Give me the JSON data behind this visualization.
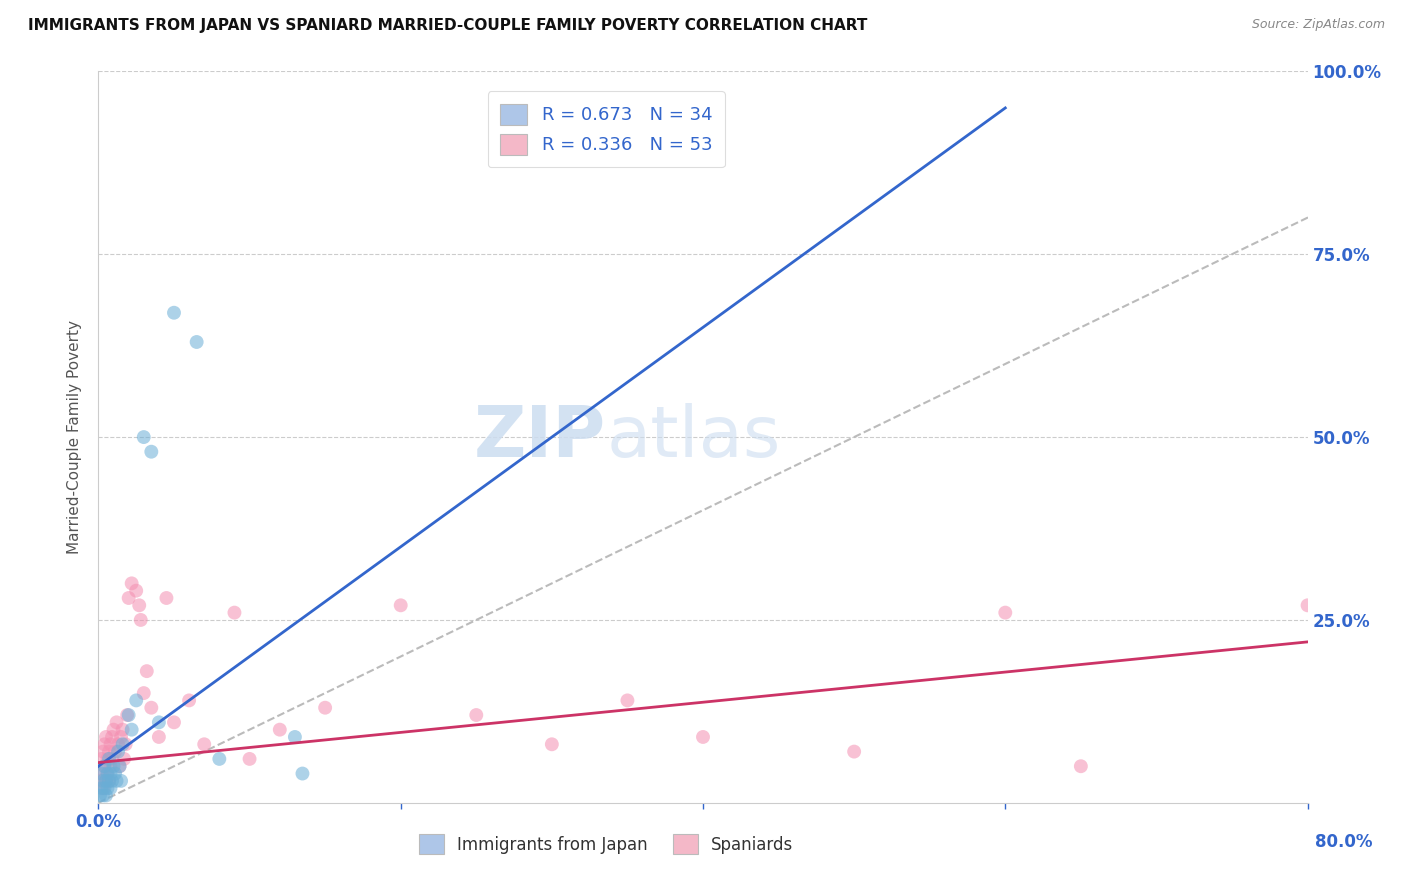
{
  "title": "IMMIGRANTS FROM JAPAN VS SPANIARD MARRIED-COUPLE FAMILY POVERTY CORRELATION CHART",
  "source": "Source: ZipAtlas.com",
  "ylabel": "Married-Couple Family Poverty",
  "xlim": [
    0.0,
    0.8
  ],
  "ylim": [
    0.0,
    1.0
  ],
  "legend1_label": "R = 0.673   N = 34",
  "legend2_label": "R = 0.336   N = 53",
  "legend1_color": "#aec6e8",
  "legend2_color": "#f4b8c8",
  "series1_color": "#6aaed6",
  "series2_color": "#f48fb1",
  "trendline1_color": "#3366cc",
  "trendline2_color": "#cc3366",
  "diagonal_color": "#bbbbbb",
  "watermark_color": "#ddeeff",
  "background_color": "#ffffff",
  "grid_color": "#cccccc",
  "japan_x": [
    0.001,
    0.002,
    0.002,
    0.003,
    0.003,
    0.004,
    0.004,
    0.005,
    0.005,
    0.006,
    0.006,
    0.007,
    0.007,
    0.008,
    0.008,
    0.009,
    0.01,
    0.011,
    0.012,
    0.013,
    0.014,
    0.015,
    0.016,
    0.02,
    0.022,
    0.025,
    0.03,
    0.035,
    0.04,
    0.05,
    0.065,
    0.08,
    0.13,
    0.135
  ],
  "japan_y": [
    0.01,
    0.02,
    0.04,
    0.01,
    0.03,
    0.02,
    0.05,
    0.01,
    0.03,
    0.02,
    0.04,
    0.03,
    0.06,
    0.02,
    0.04,
    0.03,
    0.05,
    0.04,
    0.03,
    0.07,
    0.05,
    0.03,
    0.08,
    0.12,
    0.1,
    0.14,
    0.5,
    0.48,
    0.11,
    0.67,
    0.63,
    0.06,
    0.09,
    0.04
  ],
  "spaniard_x": [
    0.001,
    0.002,
    0.002,
    0.003,
    0.003,
    0.004,
    0.004,
    0.005,
    0.005,
    0.006,
    0.006,
    0.007,
    0.007,
    0.008,
    0.008,
    0.009,
    0.009,
    0.01,
    0.011,
    0.012,
    0.013,
    0.014,
    0.015,
    0.016,
    0.017,
    0.018,
    0.019,
    0.02,
    0.022,
    0.025,
    0.027,
    0.028,
    0.03,
    0.032,
    0.035,
    0.04,
    0.045,
    0.05,
    0.06,
    0.07,
    0.09,
    0.1,
    0.12,
    0.15,
    0.2,
    0.25,
    0.3,
    0.35,
    0.4,
    0.5,
    0.6,
    0.65,
    0.8
  ],
  "spaniard_y": [
    0.03,
    0.04,
    0.06,
    0.02,
    0.07,
    0.05,
    0.08,
    0.03,
    0.09,
    0.04,
    0.06,
    0.07,
    0.03,
    0.08,
    0.05,
    0.09,
    0.06,
    0.1,
    0.07,
    0.11,
    0.08,
    0.05,
    0.09,
    0.1,
    0.06,
    0.08,
    0.12,
    0.28,
    0.3,
    0.29,
    0.27,
    0.25,
    0.15,
    0.18,
    0.13,
    0.09,
    0.28,
    0.11,
    0.14,
    0.08,
    0.26,
    0.06,
    0.1,
    0.13,
    0.27,
    0.12,
    0.08,
    0.14,
    0.09,
    0.07,
    0.26,
    0.05,
    0.27
  ],
  "trendline1_x0": 0.0,
  "trendline1_y0": 0.05,
  "trendline1_x1": 0.6,
  "trendline1_y1": 0.95,
  "trendline2_x0": 0.0,
  "trendline2_y0": 0.055,
  "trendline2_x1": 0.8,
  "trendline2_y1": 0.22
}
